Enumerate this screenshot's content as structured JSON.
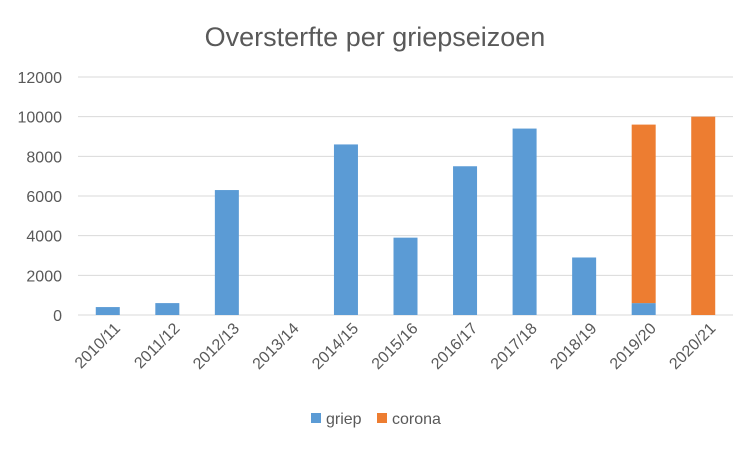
{
  "chart_data": {
    "type": "bar",
    "stacked": true,
    "title": "Oversterfte per griepseizoen",
    "xlabel": "",
    "ylabel": "",
    "categories": [
      "2010/11",
      "2011/12",
      "2012/13",
      "2013/14",
      "2014/15",
      "2015/16",
      "2016/17",
      "2017/18",
      "2018/19",
      "2019/20",
      "2020/21"
    ],
    "series": [
      {
        "name": "griep",
        "color": "#5b9bd5",
        "values": [
          400,
          600,
          6300,
          0,
          8600,
          3900,
          7500,
          9400,
          2900,
          600,
          0
        ]
      },
      {
        "name": "corona",
        "color": "#ed7d31",
        "values": [
          0,
          0,
          0,
          0,
          0,
          0,
          0,
          0,
          0,
          9000,
          10000
        ]
      }
    ],
    "ylim": [
      0,
      12000
    ],
    "yticks": [
      0,
      2000,
      4000,
      6000,
      8000,
      10000,
      12000
    ],
    "grid": true,
    "legend": "bottom"
  }
}
